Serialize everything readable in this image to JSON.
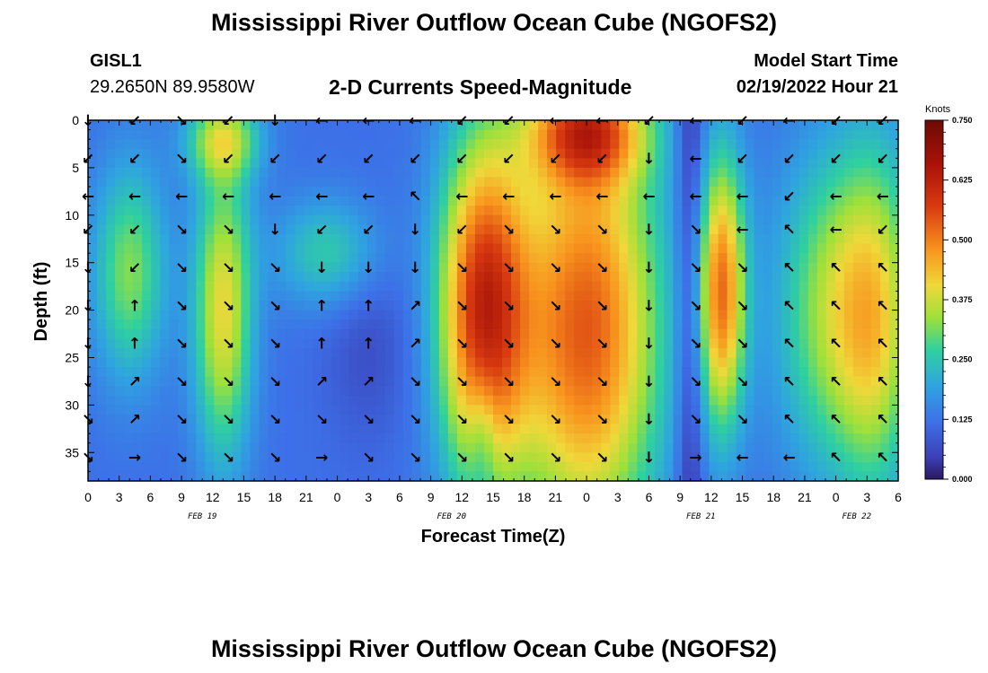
{
  "header": {
    "title": "Mississippi River Outflow Ocean Cube (NGOFS2)",
    "station": "GISL1",
    "location": "29.2650N  89.9580W",
    "subtitle": "2-D Currents Speed-Magnitude",
    "model_label": "Model Start Time",
    "model_time": "02/19/2022 Hour 21"
  },
  "footer": {
    "title": "Mississippi River Outflow Ocean Cube (NGOFS2)"
  },
  "chart_data": {
    "type": "heatmap",
    "title": "2-D Currents Speed-Magnitude",
    "xlabel": "Forecast Time(Z)",
    "ylabel": "Depth (ft)",
    "x_ticks": [
      "0",
      "3",
      "6",
      "9",
      "12",
      "15",
      "18",
      "21",
      "0",
      "3",
      "6",
      "9",
      "12",
      "15",
      "18",
      "21",
      "0",
      "3",
      "6",
      "9",
      "12",
      "15",
      "18",
      "21",
      "0",
      "3",
      "6"
    ],
    "x_range_hours": [
      0,
      78
    ],
    "date_labels": [
      {
        "label": "FEB 19",
        "hour": 11
      },
      {
        "label": "FEB 20",
        "hour": 35
      },
      {
        "label": "FEB 21",
        "hour": 59
      },
      {
        "label": "FEB 22",
        "hour": 74
      }
    ],
    "y_ticks": [
      0,
      5,
      10,
      15,
      20,
      25,
      30,
      35
    ],
    "ylim": [
      0,
      38
    ],
    "colorbar": {
      "unit": "Knots",
      "range": [
        0,
        0.75
      ],
      "ticks": [
        "0.000",
        "0.125",
        "0.250",
        "0.375",
        "0.500",
        "0.625",
        "0.750"
      ]
    },
    "vector_hours": [
      0,
      4.5,
      9,
      13.5,
      18,
      22.5,
      27,
      31.5,
      36,
      40.5,
      45,
      49.5,
      54,
      58.5,
      63,
      67.5,
      72,
      76.5
    ],
    "vector_depths": [
      0,
      4,
      8,
      11.5,
      15.5,
      19.5,
      23.5,
      27.5,
      31.5,
      35.5
    ],
    "vector_rows": [
      [
        "↓",
        "↙",
        "↘",
        "↙",
        "↓",
        "←",
        "←",
        "←",
        "↙",
        "↙",
        "←",
        "←",
        "↙",
        "←",
        "↙",
        "←",
        "↙",
        "↙"
      ],
      [
        "↙",
        "↙",
        "↘",
        "↙",
        "↙",
        "↙",
        "↙",
        "↙",
        "↙",
        "↙",
        "↙",
        "↙",
        "↓",
        "←",
        "↙",
        "↙",
        "↙",
        "↙"
      ],
      [
        "←",
        "←",
        "←",
        "←",
        "←",
        "←",
        "←",
        "↖",
        "←",
        "←",
        "←",
        "←",
        "←",
        "←",
        "←",
        "↙",
        "←",
        "←"
      ],
      [
        "↙",
        "↙",
        "↘",
        "↘",
        "↓",
        "↙",
        "↙",
        "↓",
        "↙",
        "↘",
        "↘",
        "↘",
        "↓",
        "↘",
        "←",
        "↖",
        "←",
        "↙"
      ],
      [
        "↓",
        "↙",
        "↘",
        "↘",
        "↘",
        "↓",
        "↓",
        "↓",
        "↘",
        "↘",
        "↘",
        "↘",
        "↓",
        "↘",
        "↘",
        "↖",
        "↖",
        "↖"
      ],
      [
        "↓",
        "↑",
        "↘",
        "↘",
        "↘",
        "↑",
        "↑",
        "↗",
        "↘",
        "↘",
        "↘",
        "↘",
        "↓",
        "↘",
        "↘",
        "↖",
        "↖",
        "↖"
      ],
      [
        "↓",
        "↑",
        "↘",
        "↘",
        "↘",
        "↑",
        "↑",
        "↗",
        "↘",
        "↘",
        "↘",
        "↘",
        "↓",
        "↘",
        "↘",
        "↖",
        "↖",
        "↖"
      ],
      [
        "↓",
        "↗",
        "↘",
        "↘",
        "↘",
        "↗",
        "↗",
        "↘",
        "↘",
        "↘",
        "↘",
        "↘",
        "↓",
        "↘",
        "↘",
        "↖",
        "↖",
        "↖"
      ],
      [
        "↘",
        "↗",
        "↘",
        "↘",
        "↘",
        "↘",
        "↘",
        "↘",
        "↘",
        "↘",
        "↘",
        "↘",
        "↓",
        "↘",
        "↘",
        "↖",
        "↖",
        "↖"
      ],
      [
        "↘",
        "→",
        "↘",
        "↘",
        "↘",
        "→",
        "↘",
        "↘",
        "↘",
        "↘",
        "↘",
        "↘",
        "↓",
        "→",
        "←",
        "←",
        "↖",
        "↖"
      ]
    ]
  }
}
